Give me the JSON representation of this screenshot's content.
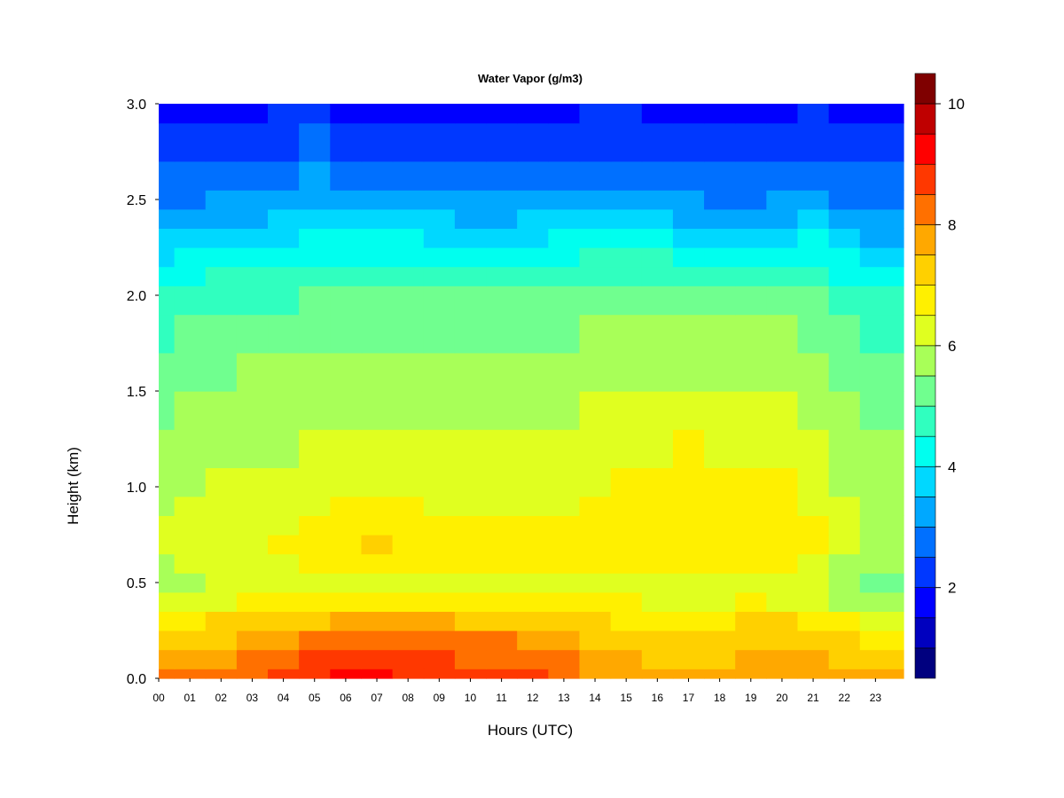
{
  "chart_data": {
    "type": "heatmap",
    "title": "Water Vapor (g/m3)",
    "xlabel": "Hours (UTC)",
    "ylabel": "Height (km)",
    "xlim": [
      0,
      23.9
    ],
    "ylim": [
      0.0,
      3.0
    ],
    "x_ticks": [
      "00",
      "01",
      "02",
      "03",
      "04",
      "05",
      "06",
      "07",
      "08",
      "09",
      "10",
      "11",
      "12",
      "13",
      "14",
      "15",
      "16",
      "17",
      "18",
      "19",
      "20",
      "21",
      "22",
      "23"
    ],
    "y_ticks": [
      "0.0",
      "0.5",
      "1.0",
      "1.5",
      "2.0",
      "2.5",
      "3.0"
    ],
    "colorbar": {
      "min": 0.5,
      "max": 10,
      "step": 0.5,
      "tick_labels": [
        "2",
        "4",
        "6",
        "8",
        "10"
      ],
      "colors": [
        "#00007F",
        "#0000BF",
        "#0000FF",
        "#0038FF",
        "#0070FF",
        "#00A8FF",
        "#00D8FF",
        "#00FFEF",
        "#30FFBF",
        "#70FF8F",
        "#A8FF58",
        "#E0FF20",
        "#FFF000",
        "#FFD000",
        "#FFA800",
        "#FF7000",
        "#FF3800",
        "#FF0000",
        "#BF0000",
        "#7F0000"
      ]
    },
    "height_km": [
      0.0,
      0.1,
      0.2,
      0.3,
      0.4,
      0.5,
      0.6,
      0.7,
      0.8,
      0.9,
      1.0,
      1.2,
      1.4,
      1.6,
      1.8,
      2.0,
      2.1,
      2.2,
      2.3,
      2.4,
      2.5,
      2.6,
      2.8,
      3.0
    ],
    "hours": [
      0,
      1,
      2,
      3,
      4,
      5,
      6,
      7,
      8,
      9,
      10,
      11,
      12,
      13,
      14,
      15,
      16,
      17,
      18,
      19,
      20,
      21,
      22,
      23
    ],
    "values_g_m3": [
      [
        8.0,
        8.2,
        8.3,
        8.4,
        8.6,
        8.8,
        9.2,
        9.0,
        8.8,
        8.8,
        8.8,
        8.6,
        8.5,
        8.3,
        7.9,
        7.7,
        7.6,
        7.5,
        7.6,
        7.8,
        7.9,
        7.7,
        7.5,
        7.5
      ],
      [
        7.6,
        7.8,
        7.9,
        8.1,
        8.3,
        8.5,
        8.8,
        8.6,
        8.5,
        8.5,
        8.4,
        8.3,
        8.2,
        8.0,
        7.7,
        7.5,
        7.4,
        7.3,
        7.4,
        7.6,
        7.6,
        7.5,
        7.3,
        7.2
      ],
      [
        7.0,
        7.2,
        7.3,
        7.5,
        7.8,
        8.0,
        8.2,
        8.2,
        8.2,
        8.1,
        8.0,
        8.0,
        7.9,
        7.7,
        7.4,
        7.2,
        7.1,
        7.1,
        7.2,
        7.3,
        7.3,
        7.2,
        7.0,
        6.8
      ],
      [
        6.6,
        6.8,
        7.0,
        7.1,
        7.3,
        7.4,
        7.6,
        7.6,
        7.6,
        7.5,
        7.4,
        7.4,
        7.3,
        7.2,
        7.0,
        6.9,
        6.8,
        6.8,
        6.9,
        7.0,
        7.0,
        6.9,
        6.6,
        6.4
      ],
      [
        6.0,
        6.2,
        6.4,
        6.5,
        6.6,
        6.7,
        6.9,
        6.9,
        6.8,
        6.8,
        6.7,
        6.7,
        6.6,
        6.6,
        6.5,
        6.5,
        6.4,
        6.4,
        6.4,
        6.5,
        6.4,
        6.2,
        5.8,
        5.6
      ],
      [
        5.6,
        5.9,
        6.0,
        6.1,
        6.2,
        6.3,
        6.4,
        6.4,
        6.4,
        6.4,
        6.3,
        6.3,
        6.3,
        6.3,
        6.3,
        6.3,
        6.4,
        6.4,
        6.4,
        6.4,
        6.3,
        6.1,
        5.6,
        5.3
      ],
      [
        5.9,
        6.1,
        6.2,
        6.3,
        6.4,
        6.6,
        6.8,
        6.8,
        6.7,
        6.7,
        6.6,
        6.6,
        6.5,
        6.5,
        6.5,
        6.6,
        6.7,
        6.8,
        6.7,
        6.7,
        6.6,
        6.4,
        5.9,
        5.6
      ],
      [
        6.0,
        6.2,
        6.3,
        6.4,
        6.5,
        6.7,
        6.9,
        7.0,
        6.9,
        6.8,
        6.7,
        6.7,
        6.6,
        6.6,
        6.6,
        6.7,
        6.8,
        6.9,
        6.8,
        6.8,
        6.7,
        6.5,
        6.0,
        5.7
      ],
      [
        6.0,
        6.1,
        6.2,
        6.3,
        6.4,
        6.6,
        6.7,
        6.8,
        6.7,
        6.6,
        6.5,
        6.5,
        6.5,
        6.5,
        6.5,
        6.7,
        6.8,
        6.9,
        6.8,
        6.8,
        6.7,
        6.5,
        6.0,
        5.8
      ],
      [
        5.9,
        6.0,
        6.1,
        6.2,
        6.3,
        6.4,
        6.5,
        6.5,
        6.5,
        6.4,
        6.4,
        6.4,
        6.4,
        6.4,
        6.5,
        6.6,
        6.8,
        6.9,
        6.8,
        6.7,
        6.6,
        6.4,
        6.0,
        5.8
      ],
      [
        5.8,
        5.9,
        6.0,
        6.1,
        6.1,
        6.2,
        6.3,
        6.3,
        6.3,
        6.3,
        6.2,
        6.2,
        6.3,
        6.3,
        6.4,
        6.5,
        6.7,
        6.8,
        6.7,
        6.6,
        6.5,
        6.3,
        5.9,
        5.7
      ],
      [
        5.6,
        5.7,
        5.8,
        5.9,
        5.9,
        6.0,
        6.1,
        6.1,
        6.1,
        6.1,
        6.0,
        6.0,
        6.1,
        6.1,
        6.2,
        6.3,
        6.4,
        6.5,
        6.4,
        6.3,
        6.2,
        6.1,
        5.7,
        5.5
      ],
      [
        5.4,
        5.5,
        5.6,
        5.7,
        5.7,
        5.8,
        5.9,
        5.9,
        5.9,
        5.9,
        5.8,
        5.8,
        5.9,
        5.9,
        6.0,
        6.0,
        6.1,
        6.2,
        6.1,
        6.1,
        6.0,
        5.9,
        5.5,
        5.3
      ],
      [
        5.2,
        5.3,
        5.4,
        5.5,
        5.5,
        5.6,
        5.7,
        5.7,
        5.7,
        5.7,
        5.6,
        5.6,
        5.7,
        5.7,
        5.8,
        5.8,
        5.9,
        5.9,
        5.9,
        5.8,
        5.8,
        5.7,
        5.3,
        5.1
      ],
      [
        4.9,
        5.0,
        5.1,
        5.2,
        5.2,
        5.3,
        5.4,
        5.4,
        5.4,
        5.4,
        5.3,
        5.3,
        5.4,
        5.4,
        5.5,
        5.5,
        5.6,
        5.6,
        5.6,
        5.5,
        5.5,
        5.4,
        5.0,
        4.8
      ],
      [
        4.6,
        4.7,
        4.8,
        4.9,
        4.9,
        5.0,
        5.1,
        5.1,
        5.1,
        5.1,
        5.0,
        5.0,
        5.1,
        5.1,
        5.2,
        5.2,
        5.2,
        5.3,
        5.2,
        5.1,
        5.1,
        5.0,
        4.7,
        4.5
      ],
      [
        4.3,
        4.4,
        4.5,
        4.6,
        4.6,
        4.7,
        4.8,
        4.8,
        4.8,
        4.8,
        4.7,
        4.7,
        4.8,
        4.8,
        4.9,
        4.9,
        4.9,
        4.9,
        4.8,
        4.7,
        4.7,
        4.7,
        4.4,
        4.2
      ],
      [
        3.9,
        4.0,
        4.1,
        4.2,
        4.3,
        4.4,
        4.4,
        4.4,
        4.4,
        4.4,
        4.3,
        4.3,
        4.4,
        4.4,
        4.5,
        4.5,
        4.5,
        4.4,
        4.3,
        4.2,
        4.3,
        4.3,
        4.0,
        3.8
      ],
      [
        3.5,
        3.6,
        3.7,
        3.8,
        3.9,
        4.0,
        4.0,
        4.0,
        4.0,
        3.9,
        3.9,
        3.9,
        3.9,
        4.0,
        4.0,
        4.0,
        4.0,
        3.9,
        3.8,
        3.8,
        3.9,
        4.0,
        3.6,
        3.4
      ],
      [
        3.1,
        3.2,
        3.3,
        3.4,
        3.5,
        3.6,
        3.6,
        3.6,
        3.5,
        3.5,
        3.4,
        3.4,
        3.5,
        3.5,
        3.6,
        3.6,
        3.5,
        3.4,
        3.3,
        3.3,
        3.4,
        3.6,
        3.2,
        3.0
      ],
      [
        2.8,
        2.9,
        3.0,
        3.1,
        3.2,
        3.3,
        3.2,
        3.2,
        3.1,
        3.1,
        3.0,
        3.0,
        3.1,
        3.1,
        3.2,
        3.2,
        3.1,
        3.0,
        2.9,
        2.9,
        3.0,
        3.2,
        2.9,
        2.8
      ],
      [
        2.5,
        2.6,
        2.7,
        2.8,
        2.9,
        3.0,
        2.9,
        2.8,
        2.7,
        2.7,
        2.6,
        2.6,
        2.7,
        2.8,
        2.9,
        2.9,
        2.8,
        2.6,
        2.5,
        2.5,
        2.6,
        2.9,
        2.6,
        2.5
      ],
      [
        2.0,
        2.1,
        2.2,
        2.3,
        2.4,
        2.5,
        2.3,
        2.2,
        2.2,
        2.1,
        2.1,
        2.1,
        2.2,
        2.3,
        2.4,
        2.4,
        2.3,
        2.1,
        2.0,
        2.0,
        2.1,
        2.4,
        2.1,
        2.0
      ],
      [
        1.7,
        1.8,
        1.8,
        1.9,
        2.0,
        2.0,
        1.9,
        1.8,
        1.8,
        1.7,
        1.7,
        1.7,
        1.8,
        1.9,
        2.0,
        2.0,
        1.9,
        1.8,
        1.7,
        1.7,
        1.8,
        2.0,
        1.8,
        1.7
      ]
    ]
  }
}
